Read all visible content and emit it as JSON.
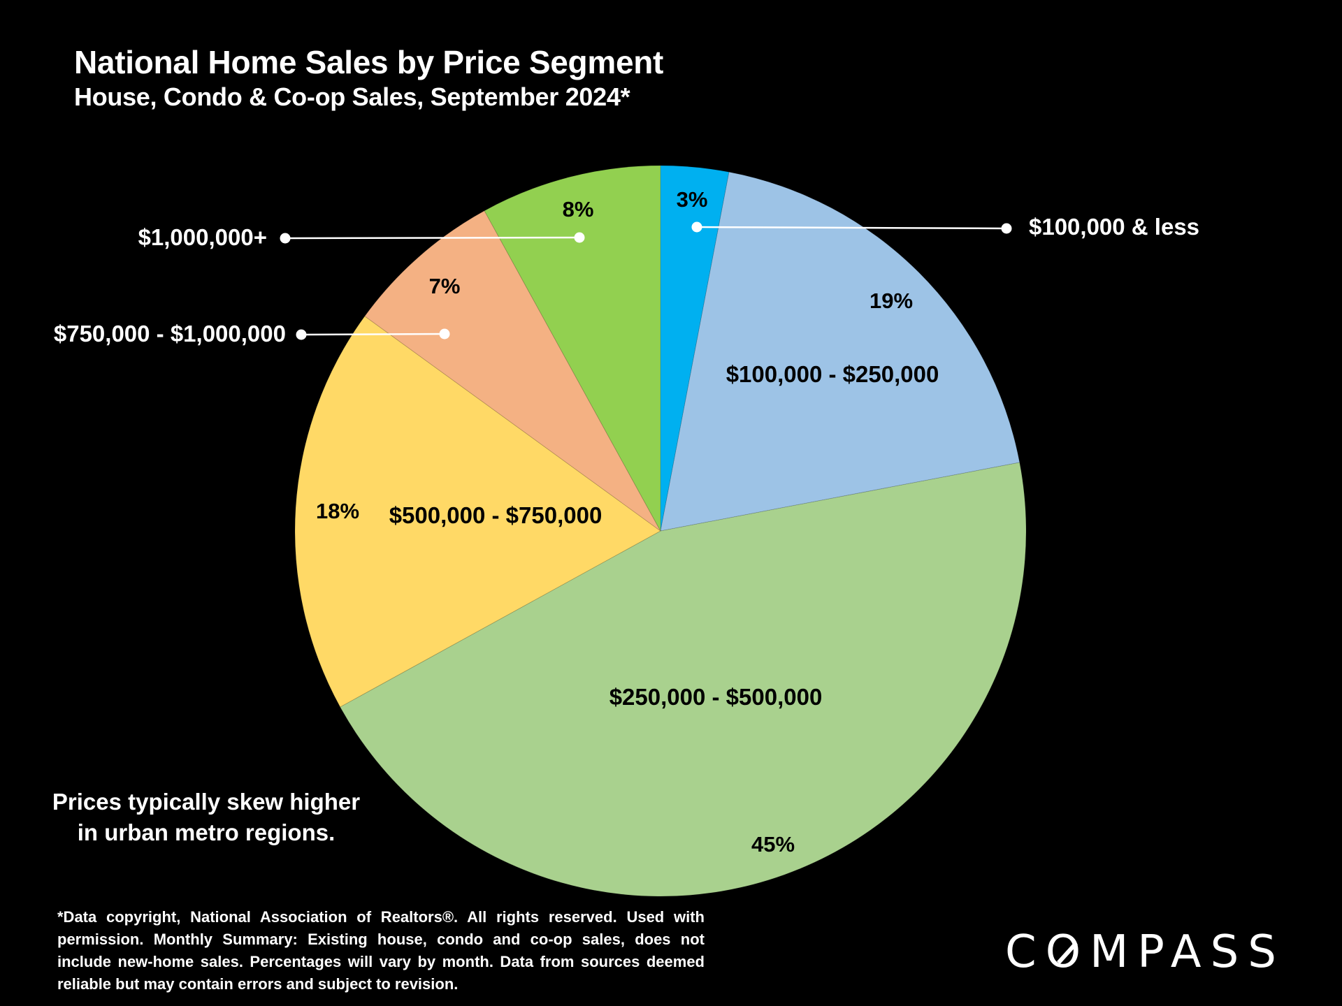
{
  "header": {
    "title": "National Home Sales by Price Segment",
    "subtitle": "House, Condo & Co-op Sales, September 2024*"
  },
  "note": {
    "line1": "Prices typically skew higher",
    "line2": "in urban metro regions."
  },
  "footnote": "*Data copyright, National Association of Realtors®. All rights reserved. Used with permission. Monthly Summary:  Existing house, condo and co-op sales, does not include new-home sales. Percentages will vary by month. Data from sources deemed reliable but may contain errors and subject to revision.",
  "logo": {
    "pre": "C",
    "o": "O",
    "post": "MPASS"
  },
  "chart_data": {
    "type": "pie",
    "start_angle_deg": 0,
    "direction": "clockwise",
    "slices": [
      {
        "label": "$100,000 & less",
        "pct_label": "3%",
        "value": 3,
        "color": "#00B0F0"
      },
      {
        "label": "$100,000 - $250,000",
        "pct_label": "19%",
        "value": 19,
        "color": "#9DC3E6"
      },
      {
        "label": "$250,000 - $500,000",
        "pct_label": "45%",
        "value": 45,
        "color": "#A9D18E"
      },
      {
        "label": "$500,000 - $750,000",
        "pct_label": "18%",
        "value": 18,
        "color": "#FFD966"
      },
      {
        "label": "$750,000 - $1,000,000",
        "pct_label": "7%",
        "value": 7,
        "color": "#F4B183"
      },
      {
        "label": "$1,000,000+",
        "pct_label": "8%",
        "value": 8,
        "color": "#92D050"
      }
    ]
  }
}
